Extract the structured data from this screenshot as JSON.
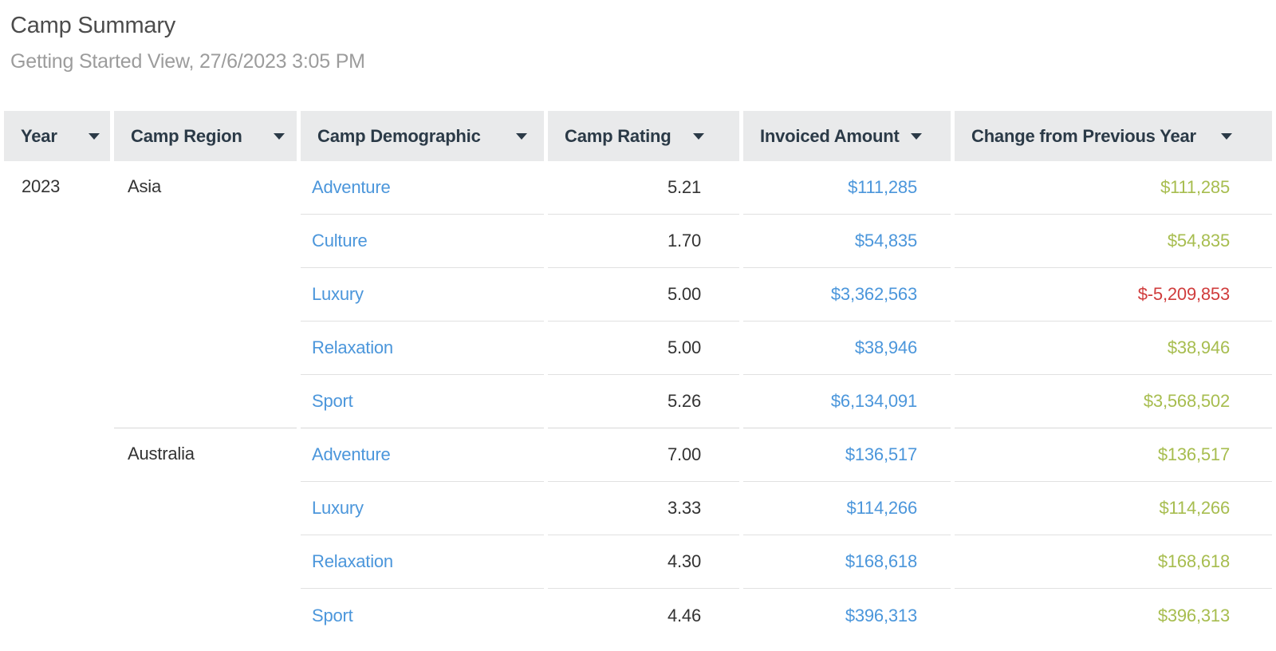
{
  "page": {
    "title": "Camp Summary",
    "subtitle": "Getting Started View, 27/6/2023 3:05 PM"
  },
  "colors": {
    "link_blue": "#4b96db",
    "positive_change": "#a7bd4f",
    "negative_change": "#d03c3c",
    "header_background": "#e9eaeb",
    "header_text": "#2b3a47"
  },
  "table": {
    "columns": [
      {
        "label": "Year"
      },
      {
        "label": "Camp Region"
      },
      {
        "label": "Camp Demographic"
      },
      {
        "label": "Camp Rating"
      },
      {
        "label": "Invoiced Amount"
      },
      {
        "label": "Change from Previous Year"
      }
    ],
    "year": "2023",
    "groups": [
      {
        "region": "Asia",
        "rows": [
          {
            "demographic": "Adventure",
            "rating": "5.21",
            "invoiced": "$111,285",
            "change": "$111,285",
            "negative": false
          },
          {
            "demographic": "Culture",
            "rating": "1.70",
            "invoiced": "$54,835",
            "change": "$54,835",
            "negative": false
          },
          {
            "demographic": "Luxury",
            "rating": "5.00",
            "invoiced": "$3,362,563",
            "change": "$-5,209,853",
            "negative": true
          },
          {
            "demographic": "Relaxation",
            "rating": "5.00",
            "invoiced": "$38,946",
            "change": "$38,946",
            "negative": false
          },
          {
            "demographic": "Sport",
            "rating": "5.26",
            "invoiced": "$6,134,091",
            "change": "$3,568,502",
            "negative": false
          }
        ]
      },
      {
        "region": "Australia",
        "rows": [
          {
            "demographic": "Adventure",
            "rating": "7.00",
            "invoiced": "$136,517",
            "change": "$136,517",
            "negative": false
          },
          {
            "demographic": "Luxury",
            "rating": "3.33",
            "invoiced": "$114,266",
            "change": "$114,266",
            "negative": false
          },
          {
            "demographic": "Relaxation",
            "rating": "4.30",
            "invoiced": "$168,618",
            "change": "$168,618",
            "negative": false
          },
          {
            "demographic": "Sport",
            "rating": "4.46",
            "invoiced": "$396,313",
            "change": "$396,313",
            "negative": false
          }
        ]
      }
    ]
  }
}
